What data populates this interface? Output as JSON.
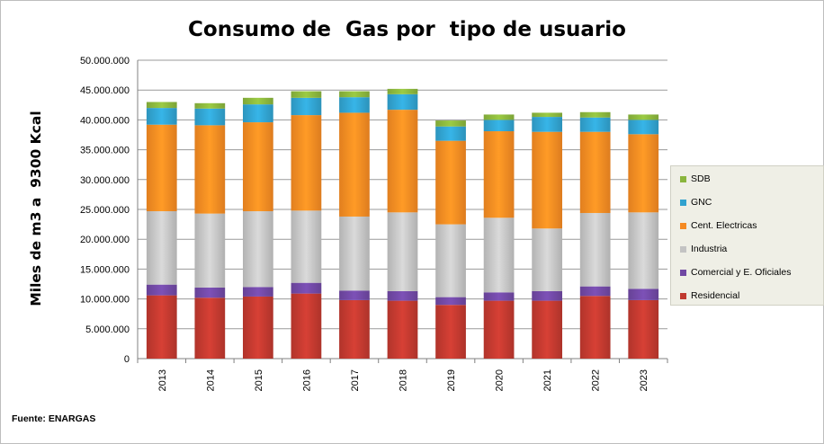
{
  "chart_data": {
    "type": "bar",
    "stacked": true,
    "title": "Consumo de  Gas por  tipo de usuario",
    "ylabel": "Miles de m3 a  9300 Kcal",
    "xlabel": "",
    "ylim": [
      0,
      50000000
    ],
    "yticks": [
      {
        "value": 0,
        "label": "0"
      },
      {
        "value": 5000000,
        "label": "5.000.000"
      },
      {
        "value": 10000000,
        "label": "10.000.000"
      },
      {
        "value": 15000000,
        "label": "15.000.000"
      },
      {
        "value": 20000000,
        "label": "20.000.000"
      },
      {
        "value": 25000000,
        "label": "25.000.000"
      },
      {
        "value": 30000000,
        "label": "30.000.000"
      },
      {
        "value": 35000000,
        "label": "35.000.000"
      },
      {
        "value": 40000000,
        "label": "40.000.000"
      },
      {
        "value": 45000000,
        "label": "45.000.000"
      },
      {
        "value": 50000000,
        "label": "50.000.000"
      }
    ],
    "grid": true,
    "legend_position": "right",
    "categories": [
      "2013",
      "2014",
      "2015",
      "2016",
      "2017",
      "2018",
      "2019",
      "2020",
      "2021",
      "2022",
      "2023"
    ],
    "series": [
      {
        "name": "Residencial",
        "color": "#c0392f",
        "values": [
          10600000,
          10200000,
          10400000,
          10900000,
          9800000,
          9700000,
          9000000,
          9700000,
          9700000,
          10500000,
          9800000
        ]
      },
      {
        "name": "Comercial y E. Oficiales",
        "color": "#7048a3",
        "values": [
          1800000,
          1700000,
          1600000,
          1800000,
          1600000,
          1600000,
          1300000,
          1400000,
          1600000,
          1600000,
          1900000
        ]
      },
      {
        "name": "Industria",
        "color": "#c3c3c3",
        "values": [
          12300000,
          12400000,
          12700000,
          12100000,
          12400000,
          13200000,
          12200000,
          12500000,
          10500000,
          12300000,
          12800000
        ]
      },
      {
        "name": "Cent. Electricas",
        "color": "#f58a22",
        "values": [
          14500000,
          14800000,
          14900000,
          16000000,
          17400000,
          17200000,
          14000000,
          14500000,
          16200000,
          13600000,
          13100000
        ]
      },
      {
        "name": "GNC",
        "color": "#31a2cf",
        "values": [
          2800000,
          2800000,
          3000000,
          2900000,
          2600000,
          2600000,
          2400000,
          1900000,
          2500000,
          2400000,
          2400000
        ]
      },
      {
        "name": "SDB",
        "color": "#8ab53d",
        "values": [
          1000000,
          900000,
          1100000,
          1100000,
          1000000,
          900000,
          1000000,
          900000,
          700000,
          900000,
          900000
        ]
      }
    ]
  },
  "legend_order": [
    "SDB",
    "GNC",
    "Cent. Electricas",
    "Industria",
    "Comercial y E. Oficiales",
    "Residencial"
  ],
  "source": "Fuente: ENARGAS"
}
